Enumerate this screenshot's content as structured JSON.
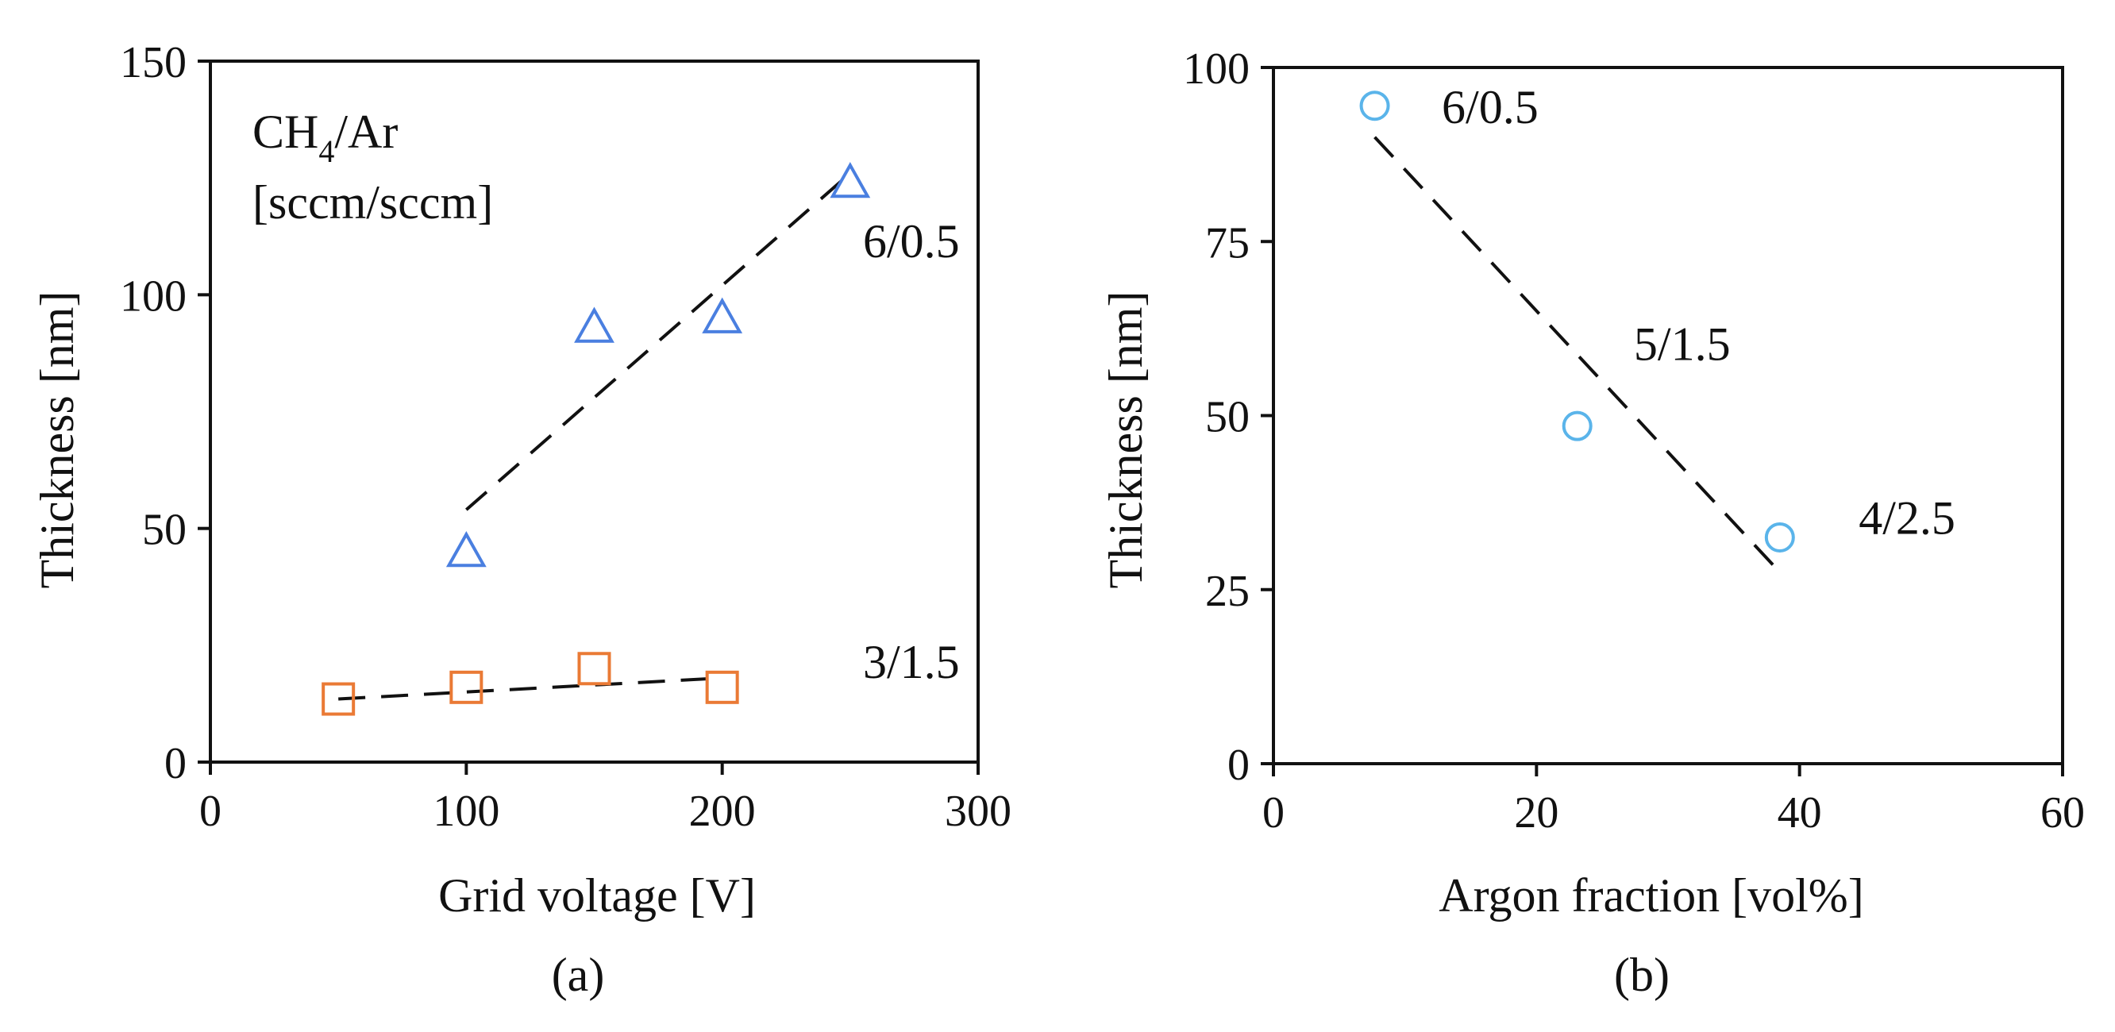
{
  "chart_data": [
    {
      "type": "scatter",
      "panel": "(a)",
      "xlabel": "Grid voltage [V]",
      "ylabel": "Thickness [nm]",
      "xlim": [
        0,
        300
      ],
      "ylim": [
        0,
        150
      ],
      "xticks": [
        0,
        100,
        200,
        300
      ],
      "yticks": [
        0,
        50,
        100,
        150
      ],
      "legend_title": {
        "main": "CH",
        "sub": "4",
        "rest": "/Ar",
        "line2": "[sccm/sccm]"
      },
      "series": [
        {
          "name": "6/0.5",
          "marker": "triangle",
          "color": "#4a7fe0",
          "x": [
            100,
            150,
            200,
            250
          ],
          "y": [
            45,
            93,
            95,
            124
          ],
          "trend": {
            "x": [
              100,
              250
            ],
            "y": [
              54,
              126
            ]
          }
        },
        {
          "name": "3/1.5",
          "marker": "square",
          "color": "#ea7a35",
          "x": [
            50,
            100,
            150,
            200
          ],
          "y": [
            13.5,
            16,
            20,
            16
          ],
          "trend": {
            "x": [
              50,
              200
            ],
            "y": [
              13.5,
              18
            ]
          }
        }
      ],
      "annotations": [
        {
          "text": "6/0.5",
          "x": 255,
          "y": 108
        },
        {
          "text": "3/1.5",
          "x": 255,
          "y": 18
        }
      ]
    },
    {
      "type": "scatter",
      "panel": "(b)",
      "xlabel": "Argon fraction [vol%]",
      "ylabel": "Thickness [nm]",
      "xlim": [
        0,
        60
      ],
      "ylim": [
        0,
        100
      ],
      "xticks": [
        0,
        20,
        40,
        60
      ],
      "yticks": [
        0,
        25,
        50,
        75,
        100
      ],
      "series": [
        {
          "name": "Argon fraction",
          "marker": "circle",
          "color": "#5ab4ea",
          "x": [
            7.7,
            23.1,
            38.5
          ],
          "y": [
            94.5,
            48.5,
            32.5
          ],
          "trend": {
            "x": [
              7.7,
              38.5
            ],
            "y": [
              90,
              27.5
            ]
          }
        }
      ],
      "annotations": [
        {
          "text": "6/0.5",
          "x": 12.8,
          "y": 92
        },
        {
          "text": "5/1.5",
          "x": 27.4,
          "y": 58
        },
        {
          "text": "4/2.5",
          "x": 44.5,
          "y": 33
        }
      ]
    }
  ]
}
